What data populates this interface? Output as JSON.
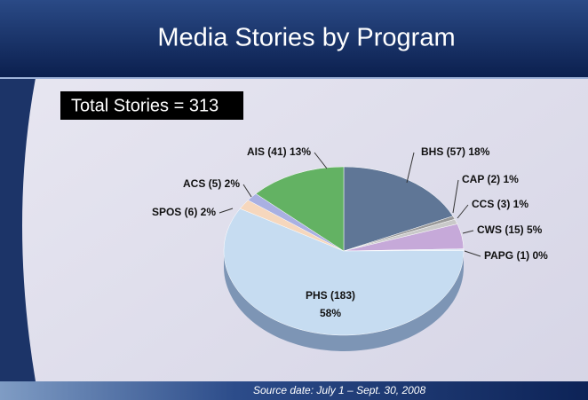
{
  "chart_data": {
    "type": "pie",
    "title": "Media Stories by Program",
    "annotation": "Total Stories = 313",
    "source": "Source date: July 1 – Sept. 30, 2008",
    "values": [
      57,
      2,
      3,
      15,
      1,
      183,
      6,
      5,
      41
    ],
    "value_labels": [
      "BHS (57) 18%",
      "CAP (2) 1%",
      "CCS (3) 1%",
      "CWS (15) 5%",
      "PAPG (1) 0%",
      "PHS (183)\n58%",
      "SPOS (6) 2%",
      "ACS (5) 2%",
      "AIS (41) 13%"
    ],
    "colors": [
      "#5f7696",
      "#9a9a9a",
      "#c9c9c9",
      "#c6a9d9",
      "#dde9f6",
      "#c6dcf1",
      "#f6d7bd",
      "#a9b0e2",
      "#63b263"
    ]
  }
}
